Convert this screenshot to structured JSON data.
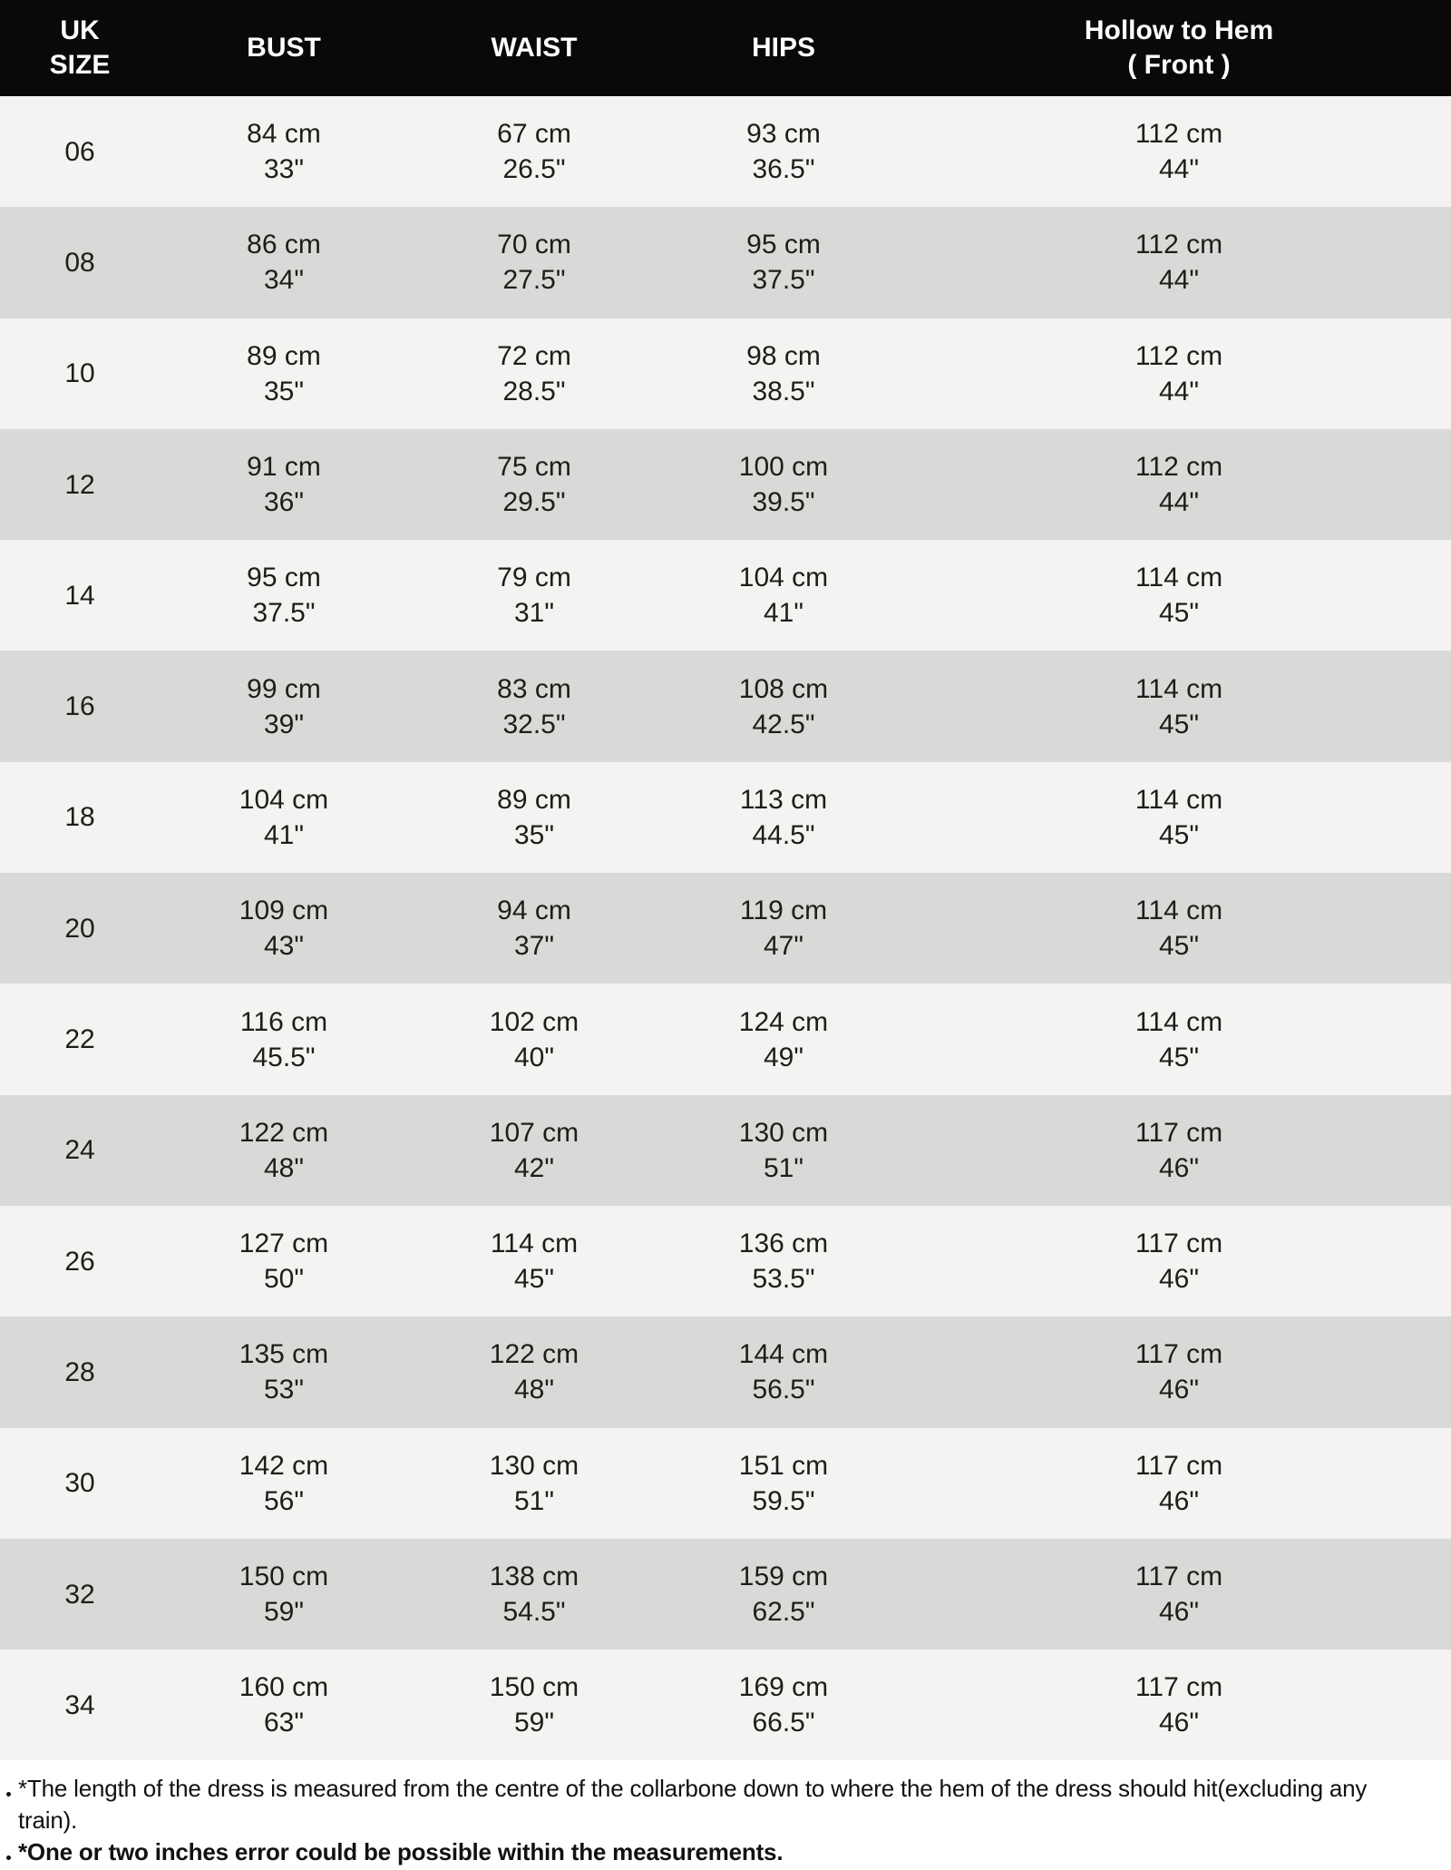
{
  "theme": {
    "header_bg": "#0b0908",
    "header_text": "#ffffff",
    "row_light_bg": "#f4f3f1",
    "row_dark_bg": "#d8dad7",
    "body_text": "#1f1d1a"
  },
  "table": {
    "headers": {
      "size": "UK\nSIZE",
      "bust": "BUST",
      "waist": "WAIST",
      "hips": "HIPS",
      "hollow": "Hollow to Hem\n( Front )"
    },
    "rows": [
      {
        "size": "06",
        "bust": "84 cm\n33\"",
        "waist": "67 cm\n26.5\"",
        "hips": "93 cm\n36.5\"",
        "hollow": "112 cm\n44\""
      },
      {
        "size": "08",
        "bust": "86 cm\n34\"",
        "waist": "70 cm\n27.5\"",
        "hips": "95 cm\n37.5\"",
        "hollow": "112 cm\n44\""
      },
      {
        "size": "10",
        "bust": "89 cm\n35\"",
        "waist": "72 cm\n28.5\"",
        "hips": "98 cm\n38.5\"",
        "hollow": "112 cm\n44\""
      },
      {
        "size": "12",
        "bust": "91 cm\n36\"",
        "waist": "75 cm\n29.5\"",
        "hips": "100 cm\n39.5\"",
        "hollow": "112 cm\n44\""
      },
      {
        "size": "14",
        "bust": "95 cm\n37.5\"",
        "waist": "79 cm\n31\"",
        "hips": "104 cm\n41\"",
        "hollow": "114 cm\n45\""
      },
      {
        "size": "16",
        "bust": "99 cm\n39\"",
        "waist": "83 cm\n32.5\"",
        "hips": "108 cm\n42.5\"",
        "hollow": "114 cm\n45\""
      },
      {
        "size": "18",
        "bust": "104 cm\n41\"",
        "waist": "89 cm\n35\"",
        "hips": "113 cm\n44.5\"",
        "hollow": "114 cm\n45\""
      },
      {
        "size": "20",
        "bust": "109 cm\n43\"",
        "waist": "94 cm\n37\"",
        "hips": "119 cm\n47\"",
        "hollow": "114 cm\n45\""
      },
      {
        "size": "22",
        "bust": "116 cm\n45.5\"",
        "waist": "102 cm\n40\"",
        "hips": "124 cm\n49\"",
        "hollow": "114 cm\n45\""
      },
      {
        "size": "24",
        "bust": "122 cm\n48\"",
        "waist": "107 cm\n42\"",
        "hips": "130 cm\n51\"",
        "hollow": "117 cm\n46\""
      },
      {
        "size": "26",
        "bust": "127 cm\n50\"",
        "waist": "114 cm\n45\"",
        "hips": "136 cm\n53.5\"",
        "hollow": "117 cm\n46\""
      },
      {
        "size": "28",
        "bust": "135 cm\n53\"",
        "waist": "122 cm\n48\"",
        "hips": "144 cm\n56.5\"",
        "hollow": "117 cm\n46\""
      },
      {
        "size": "30",
        "bust": "142 cm\n56\"",
        "waist": "130 cm\n51\"",
        "hips": "151 cm\n59.5\"",
        "hollow": "117 cm\n46\""
      },
      {
        "size": "32",
        "bust": "150 cm\n59\"",
        "waist": "138 cm\n54.5\"",
        "hips": "159 cm\n62.5\"",
        "hollow": "117 cm\n46\""
      },
      {
        "size": "34",
        "bust": "160 cm\n63\"",
        "waist": "150 cm\n59\"",
        "hips": "169 cm\n66.5\"",
        "hollow": "117 cm\n46\""
      }
    ]
  },
  "notes": [
    {
      "text": "*The length of the dress is measured from the centre of the collarbone down to where the hem of the dress should hit(excluding any train)."
    },
    {
      "text": "*One or two inches error could be possible within the measurements."
    }
  ]
}
